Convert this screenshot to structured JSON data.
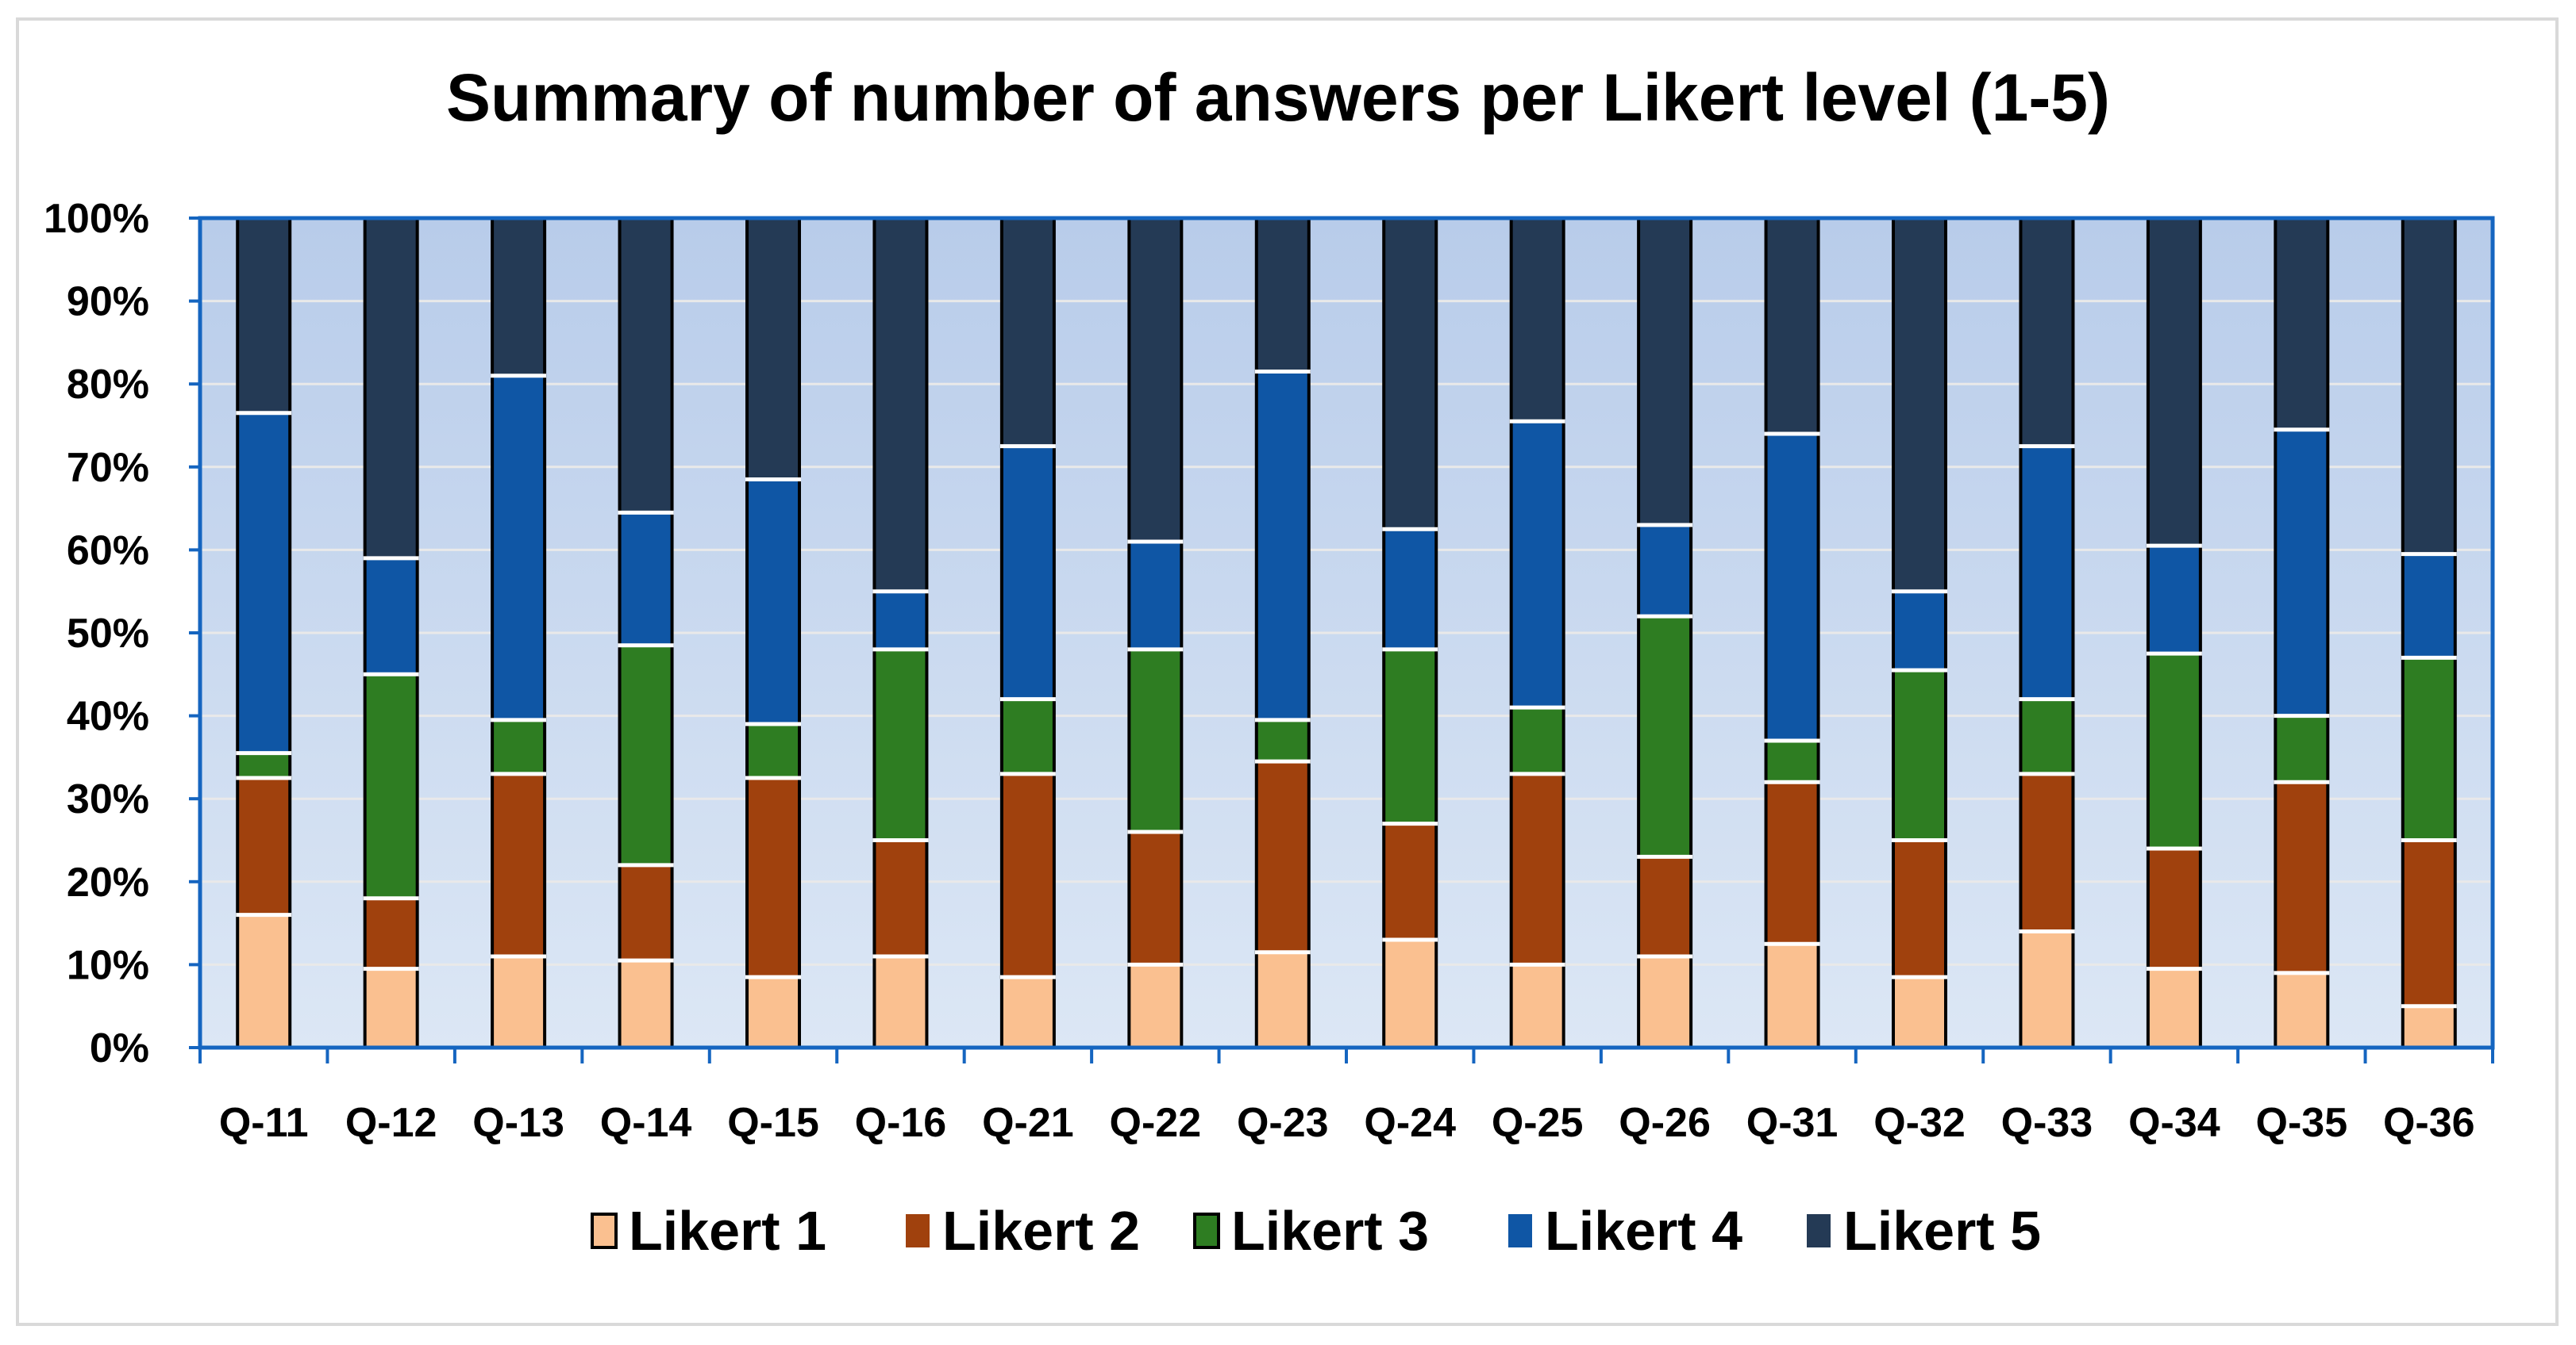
{
  "chart_data": {
    "type": "bar",
    "stacked": true,
    "normalized": true,
    "title": "Summary  of number of answers per Likert level (1-5)",
    "categories": [
      "Q-11",
      "Q-12",
      "Q-13",
      "Q-14",
      "Q-15",
      "Q-16",
      "Q-21",
      "Q-22",
      "Q-23",
      "Q-24",
      "Q-25",
      "Q-26",
      "Q-31",
      "Q-32",
      "Q-33",
      "Q-34",
      "Q-35",
      "Q-36"
    ],
    "y_ticks": [
      "0%",
      "10%",
      "20%",
      "30%",
      "40%",
      "50%",
      "60%",
      "70%",
      "80%",
      "90%",
      "100%"
    ],
    "ylim": [
      0,
      100
    ],
    "grid": true,
    "legend_position": "bottom",
    "series": [
      {
        "name": "Likert 1",
        "color": "#FAC090",
        "values": [
          16,
          9.5,
          11,
          10.5,
          8.5,
          11,
          8.5,
          10,
          11.5,
          13,
          10,
          11,
          12.5,
          8.5,
          14,
          9.5,
          9,
          5
        ]
      },
      {
        "name": "Likert 2",
        "color": "#A0410D",
        "values": [
          16.5,
          8.5,
          22,
          11.5,
          24,
          14,
          24.5,
          16,
          23,
          14,
          23,
          12,
          19.5,
          16.5,
          19,
          14.5,
          23,
          20
        ]
      },
      {
        "name": "Likert 3",
        "color": "#2E7D22",
        "values": [
          3,
          27,
          6.5,
          26.5,
          6.5,
          23,
          9,
          22,
          5,
          21,
          8,
          29,
          5,
          20.5,
          9,
          23.5,
          8,
          22
        ]
      },
      {
        "name": "Likert 4",
        "color": "#0F56A5",
        "values": [
          41,
          14,
          41.5,
          16,
          29.5,
          7,
          30.5,
          13,
          42,
          14.5,
          34.5,
          11,
          37,
          9.5,
          30.5,
          13,
          34.5,
          12.5
        ]
      },
      {
        "name": "Likert 5",
        "color": "#243A55",
        "values": [
          23.5,
          41,
          19,
          35.5,
          31.5,
          45,
          27.5,
          39,
          18.5,
          37.5,
          24.5,
          37,
          26,
          45,
          27.5,
          39.5,
          25.5,
          40.5
        ]
      }
    ]
  }
}
